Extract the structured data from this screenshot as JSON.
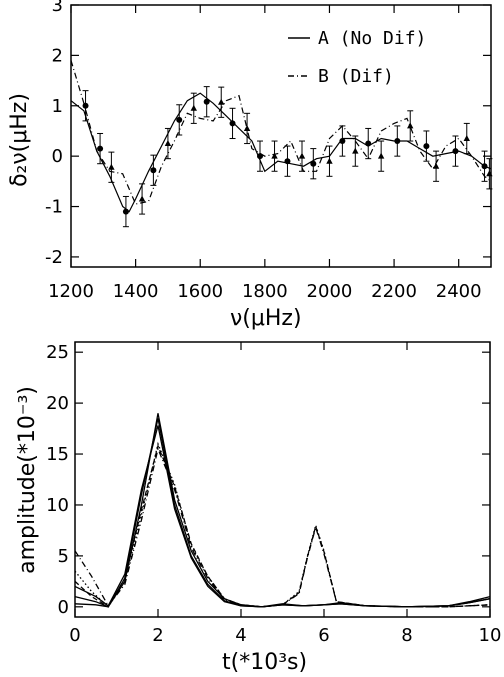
{
  "chart_data": [
    {
      "type": "line",
      "xlabel": "ν(μHz)",
      "ylabel": "δ₂ν(μHz)",
      "xlim": [
        1200,
        2500
      ],
      "ylim": [
        -2.2,
        3
      ],
      "x_ticks": [
        1200,
        1400,
        1600,
        1800,
        2000,
        2200,
        2400
      ],
      "y_ticks": [
        -2,
        -1,
        0,
        1,
        2,
        3
      ],
      "legend_position": "top-right",
      "series": [
        {
          "name": "A (No Dif)",
          "style": "solid",
          "x": [
            1200,
            1240,
            1280,
            1320,
            1360,
            1380,
            1400,
            1440,
            1480,
            1520,
            1560,
            1600,
            1640,
            1680,
            1720,
            1760,
            1800,
            1840,
            1880,
            1920,
            1960,
            2000,
            2040,
            2080,
            2120,
            2160,
            2200,
            2240,
            2280,
            2320,
            2360,
            2400,
            2440,
            2480,
            2500
          ],
          "y": [
            1.1,
            0.9,
            0.1,
            -0.4,
            -1.0,
            -1.1,
            -0.85,
            -0.3,
            0.2,
            0.7,
            1.1,
            1.25,
            1.05,
            0.8,
            0.55,
            0.3,
            -0.3,
            -0.1,
            -0.15,
            -0.2,
            -0.05,
            0.0,
            0.35,
            0.35,
            0.2,
            0.35,
            0.3,
            0.3,
            0.15,
            0.0,
            0.05,
            0.1,
            0.0,
            -0.2,
            -0.25
          ]
        },
        {
          "name": "B (Dif)",
          "style": "dash-dot",
          "x": [
            1200,
            1240,
            1280,
            1320,
            1360,
            1400,
            1440,
            1480,
            1520,
            1560,
            1600,
            1640,
            1680,
            1720,
            1760,
            1800,
            1840,
            1880,
            1920,
            1960,
            2000,
            2040,
            2080,
            2120,
            2160,
            2200,
            2240,
            2280,
            2320,
            2360,
            2400,
            2440,
            2480,
            2500
          ],
          "y": [
            1.9,
            1.05,
            0.1,
            -0.3,
            -0.35,
            -0.95,
            -0.9,
            -0.2,
            0.3,
            0.85,
            0.75,
            0.7,
            1.1,
            1.2,
            0.15,
            0.0,
            0.05,
            0.3,
            -0.3,
            -0.3,
            0.35,
            0.6,
            0.3,
            -0.05,
            0.5,
            0.65,
            0.75,
            0.1,
            -0.25,
            0.2,
            0.35,
            0.0,
            -0.4,
            -0.5
          ]
        }
      ],
      "points": [
        {
          "x": 1245,
          "y": 1.0,
          "err": 0.3,
          "marker": "circle"
        },
        {
          "x": 1290,
          "y": 0.15,
          "err": 0.3,
          "marker": "circle"
        },
        {
          "x": 1325,
          "y": -0.22,
          "err": 0.3,
          "marker": "triangle"
        },
        {
          "x": 1370,
          "y": -1.1,
          "err": 0.3,
          "marker": "circle"
        },
        {
          "x": 1420,
          "y": -0.85,
          "err": 0.3,
          "marker": "triangle"
        },
        {
          "x": 1455,
          "y": -0.28,
          "err": 0.3,
          "marker": "circle"
        },
        {
          "x": 1500,
          "y": 0.25,
          "err": 0.3,
          "marker": "triangle"
        },
        {
          "x": 1535,
          "y": 0.72,
          "err": 0.3,
          "marker": "circle"
        },
        {
          "x": 1580,
          "y": 0.95,
          "err": 0.3,
          "marker": "triangle"
        },
        {
          "x": 1620,
          "y": 1.08,
          "err": 0.3,
          "marker": "circle"
        },
        {
          "x": 1665,
          "y": 1.07,
          "err": 0.3,
          "marker": "triangle"
        },
        {
          "x": 1700,
          "y": 0.65,
          "err": 0.3,
          "marker": "circle"
        },
        {
          "x": 1745,
          "y": 0.55,
          "err": 0.3,
          "marker": "triangle"
        },
        {
          "x": 1785,
          "y": 0.0,
          "err": 0.3,
          "marker": "circle"
        },
        {
          "x": 1830,
          "y": 0.0,
          "err": 0.3,
          "marker": "triangle"
        },
        {
          "x": 1870,
          "y": -0.1,
          "err": 0.3,
          "marker": "circle"
        },
        {
          "x": 1915,
          "y": 0.0,
          "err": 0.3,
          "marker": "triangle"
        },
        {
          "x": 1950,
          "y": -0.15,
          "err": 0.3,
          "marker": "circle"
        },
        {
          "x": 2000,
          "y": -0.1,
          "err": 0.3,
          "marker": "triangle"
        },
        {
          "x": 2040,
          "y": 0.3,
          "err": 0.3,
          "marker": "circle"
        },
        {
          "x": 2080,
          "y": 0.1,
          "err": 0.3,
          "marker": "triangle"
        },
        {
          "x": 2120,
          "y": 0.25,
          "err": 0.3,
          "marker": "circle"
        },
        {
          "x": 2160,
          "y": 0.0,
          "err": 0.3,
          "marker": "triangle"
        },
        {
          "x": 2210,
          "y": 0.3,
          "err": 0.3,
          "marker": "circle"
        },
        {
          "x": 2250,
          "y": 0.6,
          "err": 0.3,
          "marker": "triangle"
        },
        {
          "x": 2300,
          "y": 0.2,
          "err": 0.3,
          "marker": "circle"
        },
        {
          "x": 2330,
          "y": -0.2,
          "err": 0.3,
          "marker": "triangle"
        },
        {
          "x": 2390,
          "y": 0.1,
          "err": 0.3,
          "marker": "circle"
        },
        {
          "x": 2425,
          "y": 0.35,
          "err": 0.3,
          "marker": "triangle"
        },
        {
          "x": 2480,
          "y": -0.2,
          "err": 0.3,
          "marker": "circle"
        },
        {
          "x": 2495,
          "y": -0.35,
          "err": 0.3,
          "marker": "triangle"
        }
      ]
    },
    {
      "type": "line",
      "xlabel": "t(*10³s)",
      "ylabel": "amplitude(*10⁻³)",
      "xlim": [
        0,
        10
      ],
      "ylim": [
        -1,
        26
      ],
      "x_ticks": [
        0,
        2,
        4,
        6,
        8,
        10
      ],
      "y_ticks": [
        0,
        5,
        10,
        15,
        20,
        25
      ],
      "series": [
        {
          "style": "solid",
          "x": [
            0,
            0.5,
            0.8,
            1.2,
            1.6,
            2.0,
            2.4,
            2.8,
            3.2,
            3.6,
            4.0,
            4.5,
            5.0,
            5.5,
            6.0,
            6.4,
            7.0,
            8.0,
            9.0,
            9.5,
            10.0
          ],
          "y": [
            0.3,
            0.2,
            0.0,
            2.5,
            10.0,
            19.0,
            10.5,
            5.5,
            2.5,
            0.8,
            0.2,
            0.0,
            0.3,
            0.1,
            0.2,
            0.4,
            0.1,
            0.0,
            0.1,
            0.5,
            1.0
          ]
        },
        {
          "style": "solid",
          "x": [
            0,
            0.5,
            0.8,
            1.2,
            1.6,
            2.0,
            2.4,
            2.8,
            3.2,
            3.6,
            4.0,
            4.5,
            5.0,
            5.5,
            6.0,
            6.4,
            7.0,
            8.0,
            9.0,
            9.5,
            10.0
          ],
          "y": [
            1.0,
            0.5,
            0.0,
            2.8,
            11.0,
            18.5,
            10.0,
            5.0,
            2.2,
            0.6,
            0.1,
            0.0,
            0.2,
            0.1,
            0.2,
            0.3,
            0.1,
            0.0,
            0.1,
            0.4,
            0.8
          ]
        },
        {
          "style": "solid",
          "x": [
            0,
            0.5,
            0.8,
            1.2,
            1.6,
            2.0,
            2.4,
            2.8,
            3.2,
            3.6,
            4.0,
            4.5,
            5.0,
            5.5,
            6.0,
            6.4,
            7.0,
            8.0,
            9.0,
            9.5,
            10.0
          ],
          "y": [
            2.0,
            1.0,
            0.1,
            3.2,
            11.5,
            17.8,
            9.6,
            4.8,
            2.0,
            0.5,
            0.1,
            0.0,
            0.2,
            0.1,
            0.2,
            0.3,
            0.1,
            0.0,
            0.1,
            0.4,
            0.8
          ]
        },
        {
          "style": "dotted",
          "x": [
            0,
            0.4,
            0.8,
            1.2,
            1.6,
            2.0,
            2.4,
            2.8,
            3.2,
            3.6,
            4.0,
            4.5,
            5.0,
            5.4,
            5.6,
            5.8,
            6.0,
            6.3,
            7.0,
            8.0,
            9.0,
            10.0
          ],
          "y": [
            3.5,
            1.5,
            0.0,
            2.5,
            9.0,
            16.0,
            12.0,
            6.0,
            3.0,
            0.8,
            0.2,
            0.0,
            0.2,
            1.5,
            5.0,
            8.0,
            5.5,
            0.5,
            0.1,
            0.0,
            0.0,
            0.2
          ]
        },
        {
          "style": "dash-dot",
          "x": [
            0,
            0.4,
            0.8,
            1.2,
            1.6,
            2.0,
            2.4,
            2.8,
            3.2,
            3.6,
            4.0,
            4.5,
            5.0,
            5.4,
            5.6,
            5.8,
            6.0,
            6.3,
            7.0,
            8.0,
            9.0,
            10.0
          ],
          "y": [
            5.5,
            3.0,
            0.1,
            2.2,
            8.5,
            15.5,
            11.5,
            5.8,
            2.8,
            0.7,
            0.2,
            0.0,
            0.2,
            1.3,
            4.8,
            7.8,
            5.2,
            0.5,
            0.1,
            0.0,
            0.0,
            0.2
          ]
        },
        {
          "style": "dashed",
          "x": [
            0,
            0.4,
            0.8,
            1.2,
            1.6,
            2.0,
            2.4,
            2.8,
            3.2,
            3.6,
            4.0,
            4.5,
            5.0,
            5.4,
            5.6,
            5.8,
            6.0,
            6.3,
            7.0,
            8.0,
            9.0,
            10.0
          ],
          "y": [
            2.5,
            1.0,
            0.0,
            2.8,
            9.5,
            15.8,
            11.8,
            6.2,
            3.0,
            0.8,
            0.2,
            0.0,
            0.2,
            1.4,
            4.9,
            7.9,
            5.4,
            0.5,
            0.1,
            0.0,
            0.0,
            0.2
          ]
        }
      ]
    }
  ]
}
